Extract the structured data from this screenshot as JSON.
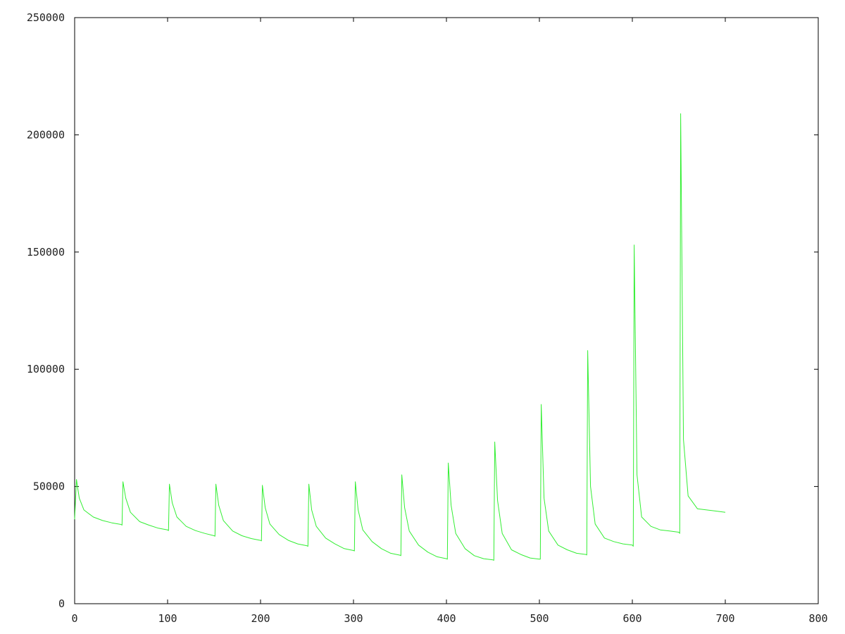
{
  "chart_data": {
    "type": "line",
    "title": "",
    "xlabel": "",
    "ylabel": "",
    "xlim": [
      0,
      800
    ],
    "ylim": [
      0,
      250000
    ],
    "x_ticks": [
      {
        "value": 0,
        "label": "0"
      },
      {
        "value": 100,
        "label": "100"
      },
      {
        "value": 200,
        "label": "200"
      },
      {
        "value": 300,
        "label": "300"
      },
      {
        "value": 400,
        "label": "400"
      },
      {
        "value": 500,
        "label": "500"
      },
      {
        "value": 600,
        "label": "600"
      },
      {
        "value": 700,
        "label": "700"
      },
      {
        "value": 800,
        "label": "800"
      }
    ],
    "y_ticks": [
      {
        "value": 0,
        "label": "0"
      },
      {
        "value": 50000,
        "label": "50000"
      },
      {
        "value": 100000,
        "label": "100000"
      },
      {
        "value": 150000,
        "label": "150000"
      },
      {
        "value": 200000,
        "label": "200000"
      },
      {
        "value": 250000,
        "label": "250000"
      }
    ],
    "grid": false,
    "legend": "none",
    "series": [
      {
        "color": "#33ee33",
        "x": [
          0,
          2,
          3,
          5,
          10,
          20,
          30,
          40,
          50,
          51,
          52,
          55,
          60,
          70,
          80,
          90,
          100,
          101,
          102,
          105,
          110,
          120,
          130,
          140,
          150,
          151,
          152,
          155,
          160,
          170,
          180,
          190,
          200,
          201,
          202,
          205,
          210,
          220,
          230,
          240,
          250,
          251,
          252,
          255,
          260,
          270,
          280,
          290,
          300,
          301,
          302,
          305,
          310,
          320,
          330,
          340,
          350,
          351,
          352,
          355,
          360,
          370,
          380,
          390,
          400,
          401,
          402,
          405,
          410,
          420,
          430,
          440,
          450,
          451,
          452,
          455,
          460,
          470,
          480,
          490,
          500,
          501,
          502,
          505,
          510,
          520,
          530,
          540,
          550,
          551,
          552,
          555,
          560,
          570,
          580,
          590,
          600,
          601,
          602,
          605,
          610,
          620,
          630,
          640,
          650,
          651,
          652,
          655,
          660,
          670,
          680,
          690,
          700
        ],
        "y": [
          36000,
          53000,
          50000,
          45000,
          40000,
          37000,
          35500,
          34500,
          33800,
          33500,
          52000,
          45000,
          39000,
          35000,
          33500,
          32200,
          31500,
          31200,
          51000,
          43000,
          37000,
          33000,
          31200,
          30000,
          29000,
          28800,
          51000,
          42000,
          35500,
          31000,
          29000,
          27800,
          27000,
          26800,
          50500,
          41000,
          34000,
          29500,
          27000,
          25500,
          24700,
          24500,
          51000,
          40000,
          33000,
          28000,
          25500,
          23500,
          22700,
          22500,
          52000,
          40000,
          31500,
          26500,
          23500,
          21500,
          20700,
          20500,
          55000,
          41000,
          31000,
          25000,
          22000,
          20000,
          19200,
          19000,
          60000,
          42000,
          30000,
          23500,
          20500,
          19200,
          18700,
          18500,
          69000,
          44000,
          30000,
          23000,
          21000,
          19500,
          19000,
          19000,
          85000,
          45000,
          31000,
          25000,
          23000,
          21500,
          21000,
          20800,
          108000,
          50000,
          34000,
          28000,
          26500,
          25500,
          25000,
          24500,
          153000,
          55000,
          37000,
          33000,
          31500,
          31000,
          30500,
          30000,
          209000,
          70000,
          46000,
          40500,
          40000,
          39500,
          39000
        ]
      }
    ]
  }
}
